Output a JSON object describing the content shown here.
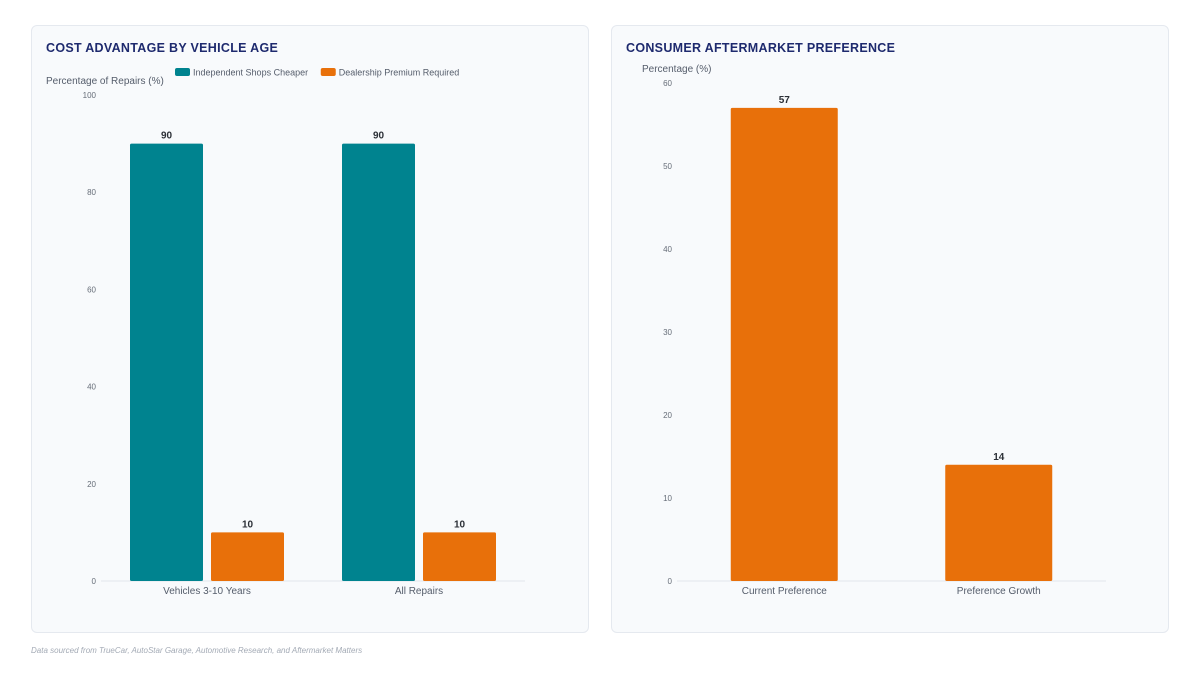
{
  "charts": [
    {
      "title": "COST ADVANTAGE BY VEHICLE AGE",
      "chart_data": {
        "type": "bar",
        "categories": [
          "Vehicles 3-10 Years",
          "All Repairs"
        ],
        "series": [
          {
            "name": "Independent Shops Cheaper",
            "color": "#00838f",
            "values": [
              90,
              90
            ]
          },
          {
            "name": "Dealership Premium Required",
            "color": "#e8700a",
            "values": [
              10,
              10
            ]
          }
        ],
        "ylabel": "Percentage of Repairs (%)",
        "xlabel": "",
        "ylim": [
          0,
          100
        ],
        "yticks": [
          "0",
          "20",
          "40",
          "60",
          "80",
          "100"
        ],
        "legend": "top",
        "grid": false
      }
    },
    {
      "title": "CONSUMER AFTERMARKET PREFERENCE",
      "chart_data": {
        "type": "bar",
        "categories": [
          "Current Preference",
          "Preference Growth"
        ],
        "series": [
          {
            "color": "#e8700a",
            "values": [
              57,
              14
            ]
          }
        ],
        "ylabel": "Percentage (%)",
        "xlabel": "",
        "ylim": [
          0,
          60
        ],
        "yticks": [
          "0",
          "10",
          "20",
          "30",
          "40",
          "50",
          "60"
        ],
        "legend": "none",
        "grid": false
      }
    }
  ],
  "footnote": "Data sourced from TrueCar, AutoStar Garage, Automotive Research, and Aftermarket Matters"
}
